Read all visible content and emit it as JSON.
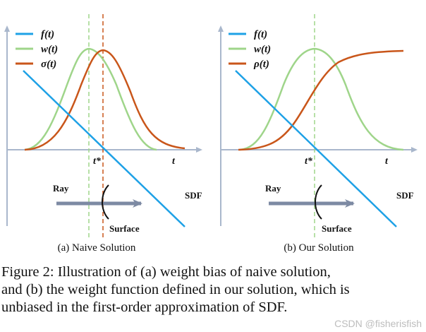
{
  "panels": [
    {
      "id": "a",
      "legend": [
        "f(t)",
        "w(t)",
        "σ(t)"
      ],
      "tstar": "t*",
      "t_label": "t",
      "ray": "Ray",
      "sdf": "SDF",
      "surface": "Surface",
      "subcaption": "(a) Naive Solution"
    },
    {
      "id": "b",
      "legend": [
        "f(t)",
        "w(t)",
        "ρ(t)"
      ],
      "tstar": "t*",
      "t_label": "t",
      "ray": "Ray",
      "sdf": "SDF",
      "surface": "Surface",
      "subcaption": "(b) Our Solution"
    }
  ],
  "colors": {
    "f": "#1ea1e6",
    "w": "#9fd58a",
    "third": "#c9561a",
    "axis": "#a9b7cc",
    "ray": "#7d8aa3",
    "guide_green": "#9fd58a",
    "guide_orange": "#c9561a"
  },
  "caption": {
    "lines": [
      "Figure 2: Illustration of (a) weight bias of naive solution,",
      "and (b) the weight function defined in our solution, which is",
      "unbiased in the first-order approximation of SDF."
    ]
  },
  "watermark": "CSDN @fisherisfish"
}
